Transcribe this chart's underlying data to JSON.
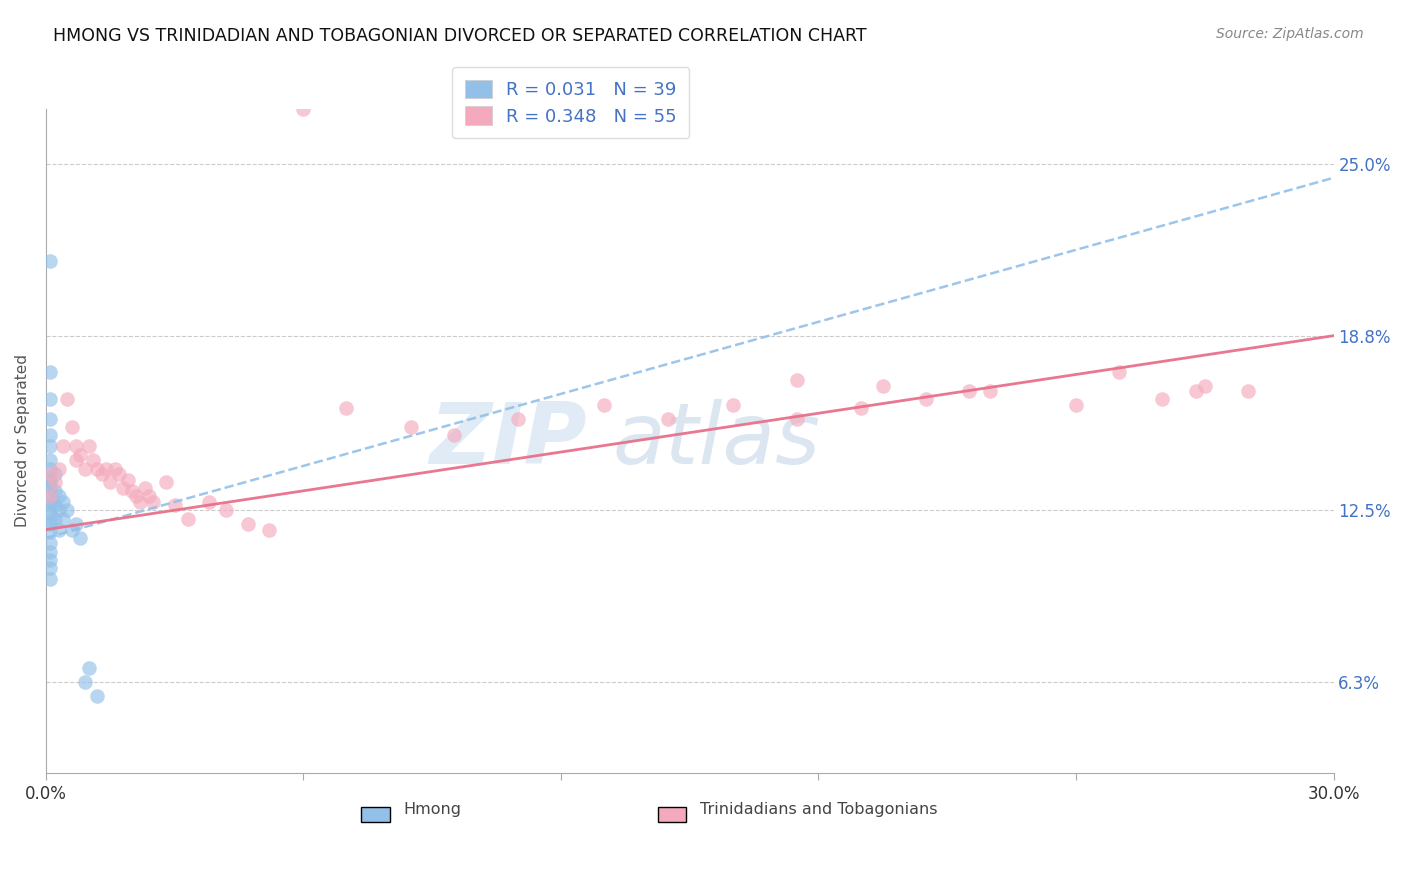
{
  "title": "HMONG VS TRINIDADIAN AND TOBAGONIAN DIVORCED OR SEPARATED CORRELATION CHART",
  "source": "Source: ZipAtlas.com",
  "ylabel": "Divorced or Separated",
  "xlim": [
    0.0,
    0.3
  ],
  "ylim": [
    0.03,
    0.27
  ],
  "xtick_positions": [
    0.0,
    0.06,
    0.12,
    0.18,
    0.24,
    0.3
  ],
  "xtick_labels": [
    "0.0%",
    "",
    "",
    "",
    "",
    "30.0%"
  ],
  "ytick_values_right": [
    0.063,
    0.125,
    0.188,
    0.25
  ],
  "ytick_labels_right": [
    "6.3%",
    "12.5%",
    "18.8%",
    "25.0%"
  ],
  "legend_r1": "R = 0.031",
  "legend_n1": "N = 39",
  "legend_r2": "R = 0.348",
  "legend_n2": "N = 55",
  "color_blue": "#92C0E8",
  "color_pink": "#F4AABC",
  "color_blue_line": "#92C0E8",
  "color_pink_line": "#E8708A",
  "background_color": "#FFFFFF",
  "hmong_x": [
    0.001,
    0.001,
    0.001,
    0.001,
    0.001,
    0.001,
    0.001,
    0.001,
    0.001,
    0.001,
    0.001,
    0.001,
    0.001,
    0.001,
    0.001,
    0.001,
    0.001,
    0.001,
    0.001,
    0.001,
    0.001,
    0.001,
    0.001,
    0.002,
    0.002,
    0.002,
    0.002,
    0.003,
    0.003,
    0.003,
    0.004,
    0.004,
    0.005,
    0.006,
    0.007,
    0.008,
    0.009,
    0.01,
    0.012
  ],
  "hmong_y": [
    0.215,
    0.175,
    0.165,
    0.158,
    0.152,
    0.148,
    0.143,
    0.14,
    0.136,
    0.133,
    0.13,
    0.127,
    0.124,
    0.12,
    0.117,
    0.113,
    0.11,
    0.107,
    0.104,
    0.1,
    0.135,
    0.128,
    0.122,
    0.138,
    0.132,
    0.127,
    0.122,
    0.13,
    0.125,
    0.118,
    0.128,
    0.122,
    0.125,
    0.118,
    0.12,
    0.115,
    0.063,
    0.068,
    0.058
  ],
  "trini_x": [
    0.001,
    0.001,
    0.002,
    0.003,
    0.004,
    0.005,
    0.006,
    0.007,
    0.007,
    0.008,
    0.009,
    0.01,
    0.011,
    0.012,
    0.013,
    0.014,
    0.015,
    0.016,
    0.017,
    0.018,
    0.019,
    0.02,
    0.021,
    0.022,
    0.023,
    0.024,
    0.025,
    0.028,
    0.03,
    0.033,
    0.038,
    0.042,
    0.047,
    0.052,
    0.06,
    0.07,
    0.085,
    0.095,
    0.11,
    0.13,
    0.145,
    0.16,
    0.175,
    0.19,
    0.205,
    0.22,
    0.24,
    0.26,
    0.27,
    0.28,
    0.175,
    0.195,
    0.215,
    0.25,
    0.268
  ],
  "trini_y": [
    0.138,
    0.13,
    0.135,
    0.14,
    0.148,
    0.165,
    0.155,
    0.148,
    0.143,
    0.145,
    0.14,
    0.148,
    0.143,
    0.14,
    0.138,
    0.14,
    0.135,
    0.14,
    0.138,
    0.133,
    0.136,
    0.132,
    0.13,
    0.128,
    0.133,
    0.13,
    0.128,
    0.135,
    0.127,
    0.122,
    0.128,
    0.125,
    0.12,
    0.118,
    0.27,
    0.162,
    0.155,
    0.152,
    0.158,
    0.163,
    0.158,
    0.163,
    0.158,
    0.162,
    0.165,
    0.168,
    0.163,
    0.165,
    0.17,
    0.168,
    0.172,
    0.17,
    0.168,
    0.175,
    0.168
  ],
  "blue_line_x0": 0.0,
  "blue_line_y0": 0.115,
  "blue_line_x1": 0.3,
  "blue_line_y1": 0.245,
  "pink_line_x0": 0.0,
  "pink_line_y0": 0.118,
  "pink_line_x1": 0.3,
  "pink_line_y1": 0.188
}
